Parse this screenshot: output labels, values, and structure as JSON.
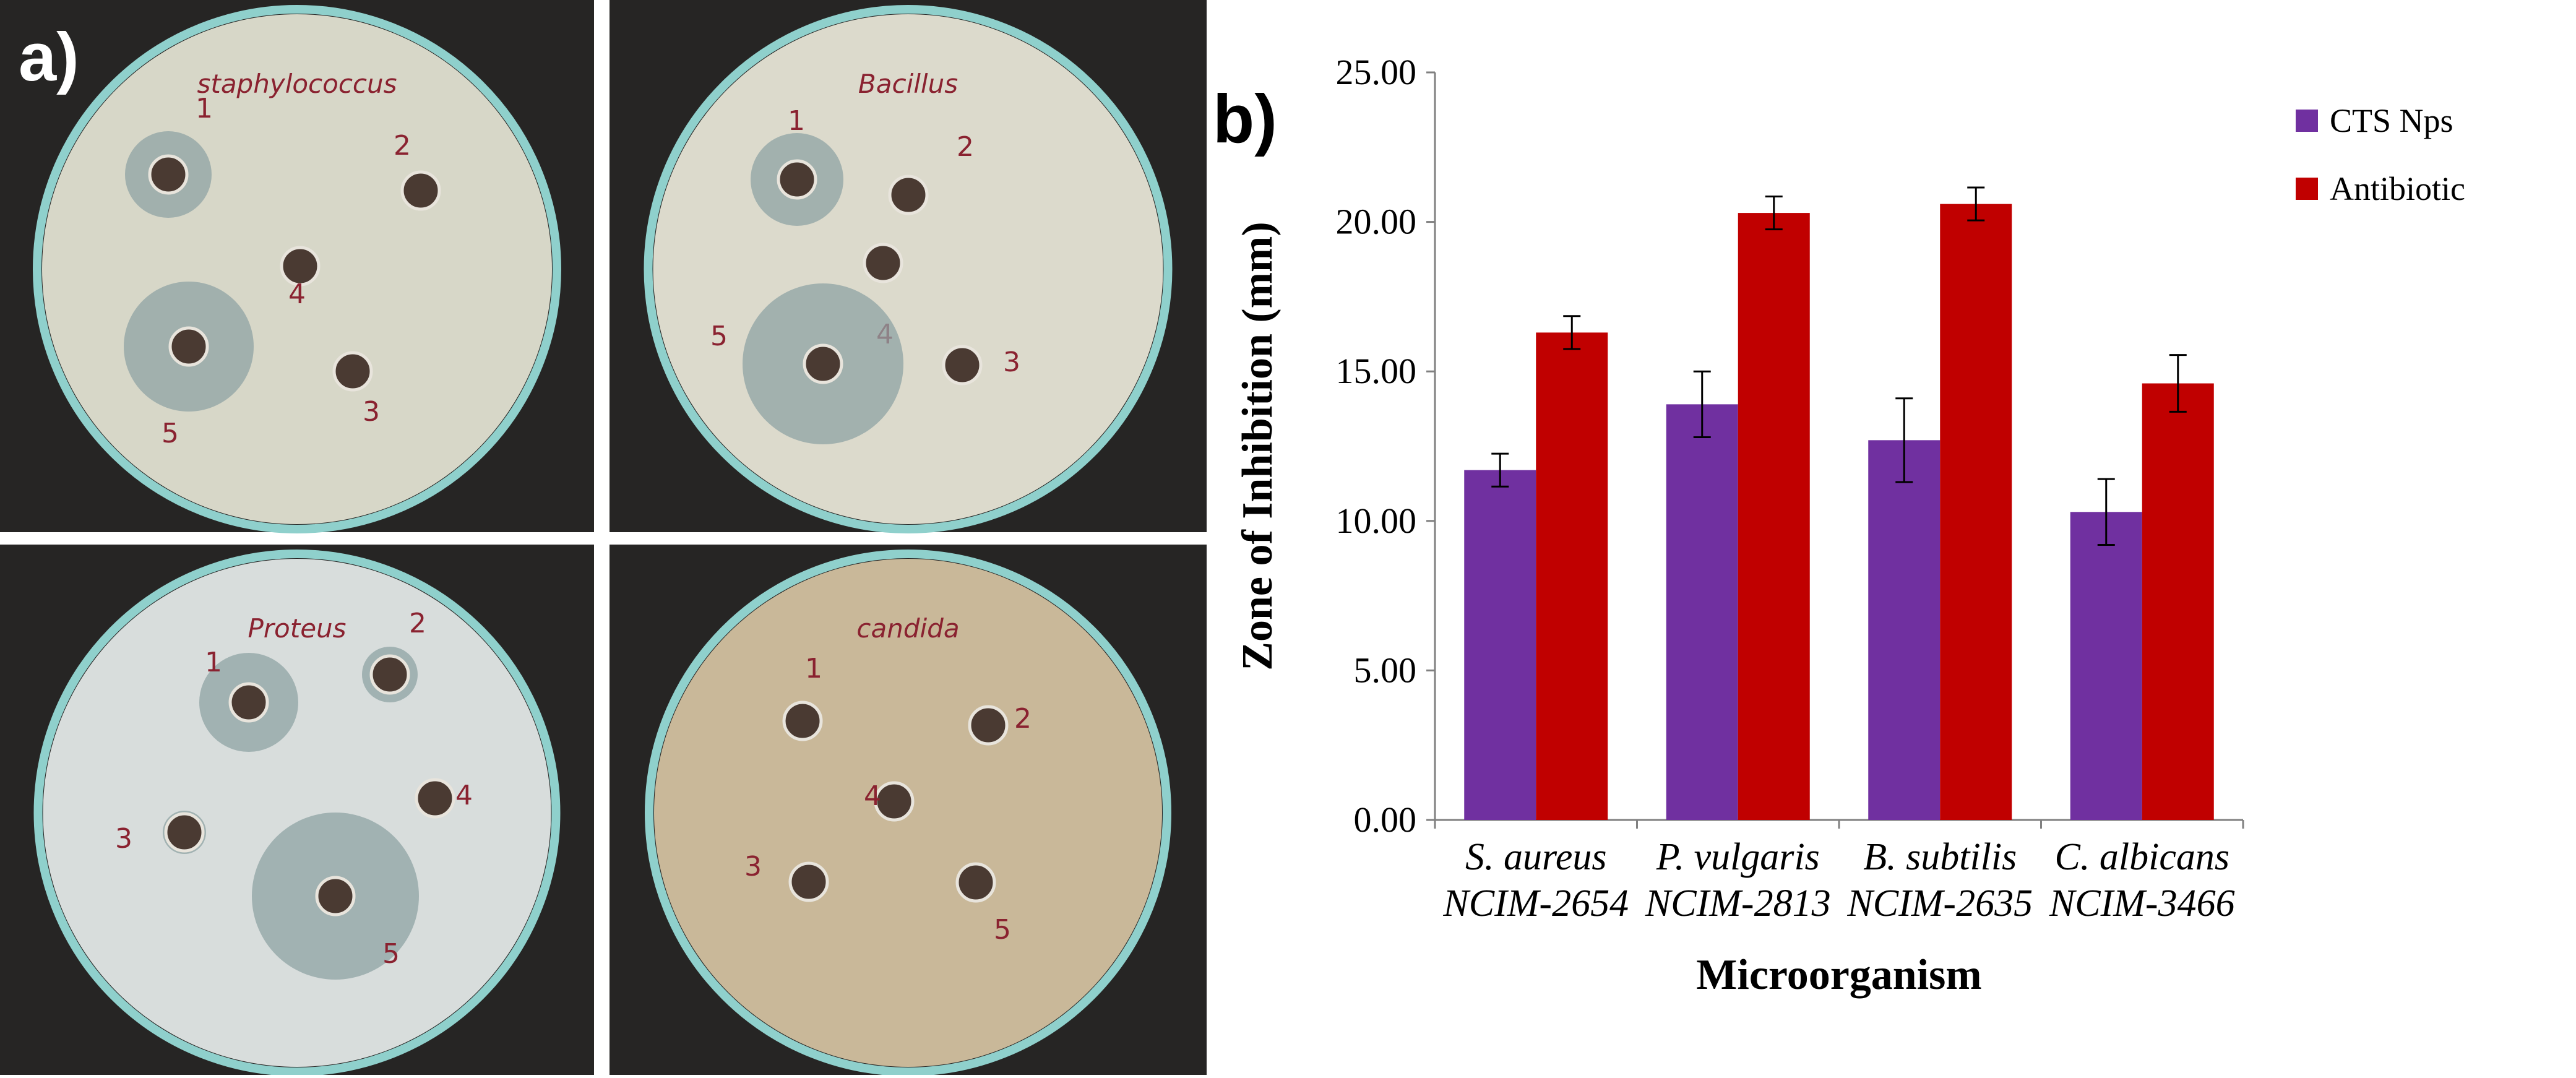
{
  "panel_a": {
    "letter": "a)",
    "plates": [
      {
        "label": "staphylococcus",
        "wells": [
          "1",
          "2",
          "4",
          "5",
          "3"
        ]
      },
      {
        "label": "Bacillus",
        "wells": [
          "1",
          "2",
          "4",
          "5",
          "3"
        ]
      },
      {
        "label": "Proteus",
        "wells": [
          "1",
          "2",
          "4",
          "3",
          "5"
        ]
      },
      {
        "label": "candida",
        "wells": [
          "1",
          "2",
          "4",
          "3",
          "5"
        ]
      }
    ],
    "colors": {
      "background": "#262524",
      "dish_rim": "#8fd0cc",
      "well": "#4a3a32",
      "zone": "#8fa3a4",
      "marker": "#8a2230"
    }
  },
  "panel_b": {
    "letter": "b)",
    "chart_data": {
      "type": "bar",
      "title": "",
      "xlabel": "Microorganism",
      "ylabel": "Zone of Inhibition (mm)",
      "ylim": [
        0,
        25
      ],
      "yticks": [
        "0.00",
        "5.00",
        "10.00",
        "15.00",
        "20.00",
        "25.00"
      ],
      "categories": [
        {
          "line1": "S. aureus",
          "line2": "NCIM-2654"
        },
        {
          "line1": "P. vulgaris",
          "line2": "NCIM-2813"
        },
        {
          "line1": "B. subtilis",
          "line2": "NCIM-2635"
        },
        {
          "line1": "C. albicans",
          "line2": "NCIM-3466"
        }
      ],
      "series": [
        {
          "name": "CTS Nps",
          "color": "#7030a0",
          "values": [
            11.7,
            13.9,
            12.7,
            10.3
          ],
          "errors": [
            0.55,
            1.1,
            1.4,
            1.1
          ]
        },
        {
          "name": "Antibiotic",
          "color": "#c00000",
          "values": [
            16.3,
            20.3,
            20.6,
            14.6
          ],
          "errors": [
            0.55,
            0.55,
            0.55,
            0.95
          ]
        }
      ],
      "legend_position": "top-right",
      "grid": false
    }
  }
}
